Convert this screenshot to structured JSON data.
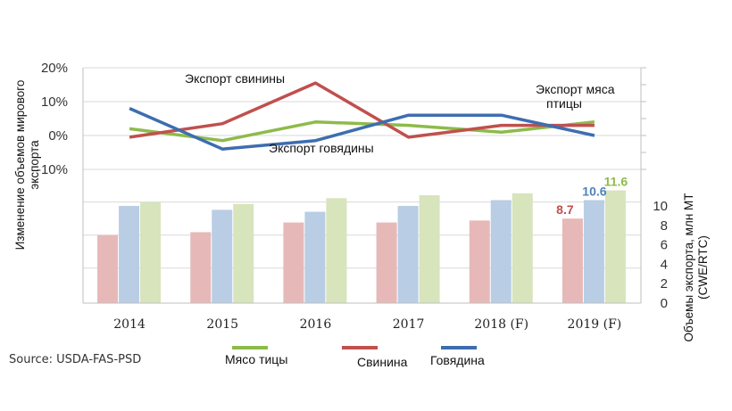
{
  "chart_data": {
    "type": "bar+line",
    "categories": [
      "2014",
      "2015",
      "2016",
      "2017",
      "2018 (F)",
      "2019 (F)"
    ],
    "line_chart": {
      "ylabel": "Изменение объемов мирового экспорта",
      "yticks": [
        "20%",
        "10%",
        "0%",
        "-10%"
      ],
      "ylim": [
        -10,
        20
      ],
      "series": [
        {
          "key": "poultry",
          "values": [
            2,
            -1.5,
            4,
            3,
            1,
            4
          ],
          "color": "#8dbb4a"
        },
        {
          "key": "pork",
          "values": [
            -0.5,
            3.5,
            15.5,
            -0.5,
            3,
            3
          ],
          "color": "#c0504d"
        },
        {
          "key": "beef",
          "values": [
            8,
            -4,
            -1.5,
            6,
            6,
            0
          ],
          "color": "#3e6db0"
        }
      ],
      "annotations": {
        "pork": "Экспорт свинины",
        "beef": "Экспорт говядины",
        "poultry": "Экспорт мяса птицы"
      }
    },
    "bar_chart": {
      "ylabel": "Объемы экспорта, млн МТ (CWE/RTC)",
      "yticks": [
        "10",
        "8",
        "6",
        "4",
        "2",
        "0"
      ],
      "ylim": [
        0,
        12
      ],
      "series": [
        {
          "key": "pork",
          "values": [
            7,
            7.3,
            8.3,
            8.3,
            8.5,
            8.7
          ],
          "color": "#e6b9b8"
        },
        {
          "key": "beef",
          "values": [
            10,
            9.6,
            9.4,
            10,
            10.6,
            10.6
          ],
          "color": "#b9cde5"
        },
        {
          "key": "poultry",
          "values": [
            10.4,
            10.2,
            10.8,
            11.1,
            11.3,
            11.6
          ],
          "color": "#d7e4bc"
        }
      ],
      "data_labels": [
        {
          "series": "pork",
          "index": 5,
          "text": "8.7",
          "color": "#c0504d"
        },
        {
          "series": "beef",
          "index": 5,
          "text": "10.6",
          "color": "#4f81bd"
        },
        {
          "series": "poultry",
          "index": 5,
          "text": "11.6",
          "color": "#8dbb4a"
        }
      ]
    },
    "legend": [
      {
        "key": "poultry",
        "label": "Мясо тицы",
        "color": "#8dbb4a"
      },
      {
        "key": "pork",
        "label": "Свинина",
        "color": "#c0504d"
      },
      {
        "key": "beef",
        "label": "Говядина",
        "color": "#3e6db0"
      }
    ],
    "source": "Source: USDA-FAS-PSD"
  }
}
